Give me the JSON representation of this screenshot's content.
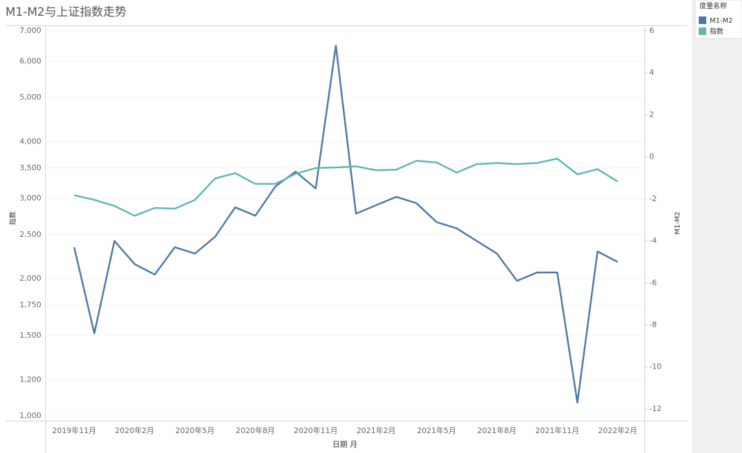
{
  "chart_data": {
    "type": "line",
    "title": "M1-M2与上证指数走势",
    "x_label": "日期 月",
    "y_label": "指数",
    "y2_label": "M1-M2",
    "legend_title": "度量名称",
    "legend_position": "right",
    "categories": [
      "2019年11月",
      null,
      null,
      "2020年2月",
      null,
      null,
      "2020年5月",
      null,
      null,
      "2020年8月",
      null,
      null,
      "2020年11月",
      null,
      null,
      "2021年2月",
      null,
      null,
      "2021年5月",
      null,
      null,
      "2021年8月",
      null,
      null,
      "2021年11月",
      null,
      null,
      "2022年2月"
    ],
    "series": [
      {
        "name": "M1-M2",
        "color": "#4e79a7",
        "axis": "y2",
        "values": [
          -4.3,
          -8.4,
          -4.0,
          -5.1,
          -5.6,
          -4.3,
          -4.6,
          -3.8,
          -2.4,
          -2.8,
          -1.4,
          -0.7,
          -1.5,
          5.3,
          -2.7,
          -2.3,
          -1.9,
          -2.2,
          -3.1,
          -3.4,
          -4.0,
          -4.6,
          -5.9,
          -5.5,
          -5.5,
          -11.7,
          -4.5,
          -5.0
        ]
      },
      {
        "name": "指数",
        "color": "#5fb7b2",
        "values": [
          3050,
          2980,
          2890,
          2750,
          2860,
          2850,
          2980,
          3320,
          3410,
          3230,
          3230,
          3400,
          3500,
          3510,
          3530,
          3460,
          3470,
          3630,
          3600,
          3420,
          3570,
          3590,
          3570,
          3590,
          3670,
          3390,
          3480,
          3270
        ]
      }
    ],
    "y_scale": "log",
    "ylim": [
      976,
      7170
    ],
    "yticks": [
      {
        "value": 1000,
        "label": "1,000"
      },
      {
        "value": 1200,
        "label": "1,200"
      },
      {
        "value": 1500,
        "label": "1,500"
      },
      {
        "value": 1750,
        "label": "1,750"
      },
      {
        "value": 2000,
        "label": "2,000"
      },
      {
        "value": 2500,
        "label": "2,500"
      },
      {
        "value": 3000,
        "label": "3,000"
      },
      {
        "value": 3500,
        "label": "3,500"
      },
      {
        "value": 4000,
        "label": "4,000"
      },
      {
        "value": 5000,
        "label": "5,000"
      },
      {
        "value": 6000,
        "label": "6,000"
      },
      {
        "value": 7000,
        "label": "7,000"
      }
    ],
    "y2lim": [
      -12.56,
      6.23
    ],
    "y2ticks": [
      -12,
      -10,
      -8,
      -6,
      -4,
      -2,
      0,
      2,
      4,
      6
    ],
    "grid": true
  }
}
